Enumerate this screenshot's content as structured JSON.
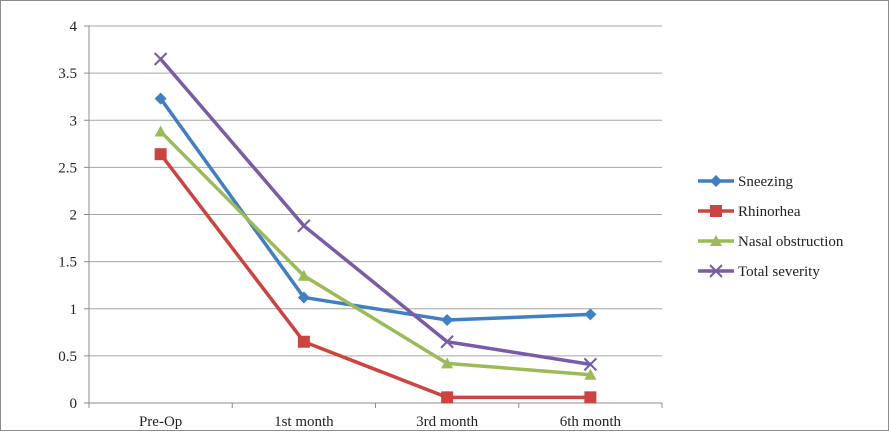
{
  "chart_data": {
    "type": "line",
    "title": "",
    "xlabel": "",
    "ylabel": "",
    "categories": [
      "Pre-Op",
      "1st month",
      "3rd month",
      "6th month"
    ],
    "ylim": [
      0,
      4
    ],
    "yticks": [
      "0",
      "0.5",
      "1",
      "1.5",
      "2",
      "2.5",
      "3",
      "3.5",
      "4"
    ],
    "grid": true,
    "legend_position": "right",
    "series": [
      {
        "name": "Sneezing",
        "color": "#3f7fc4",
        "marker": "diamond",
        "values": [
          3.23,
          1.12,
          0.88,
          0.94
        ]
      },
      {
        "name": "Rhinorhea",
        "color": "#cc4440",
        "marker": "square",
        "values": [
          2.64,
          0.65,
          0.06,
          0.06
        ]
      },
      {
        "name": "Nasal obstruction",
        "color": "#9bbb59",
        "marker": "triangle",
        "values": [
          2.88,
          1.35,
          0.42,
          0.3
        ]
      },
      {
        "name": "Total severity",
        "color": "#7a5ba6",
        "marker": "x",
        "values": [
          3.65,
          1.88,
          0.65,
          0.41
        ]
      }
    ]
  }
}
